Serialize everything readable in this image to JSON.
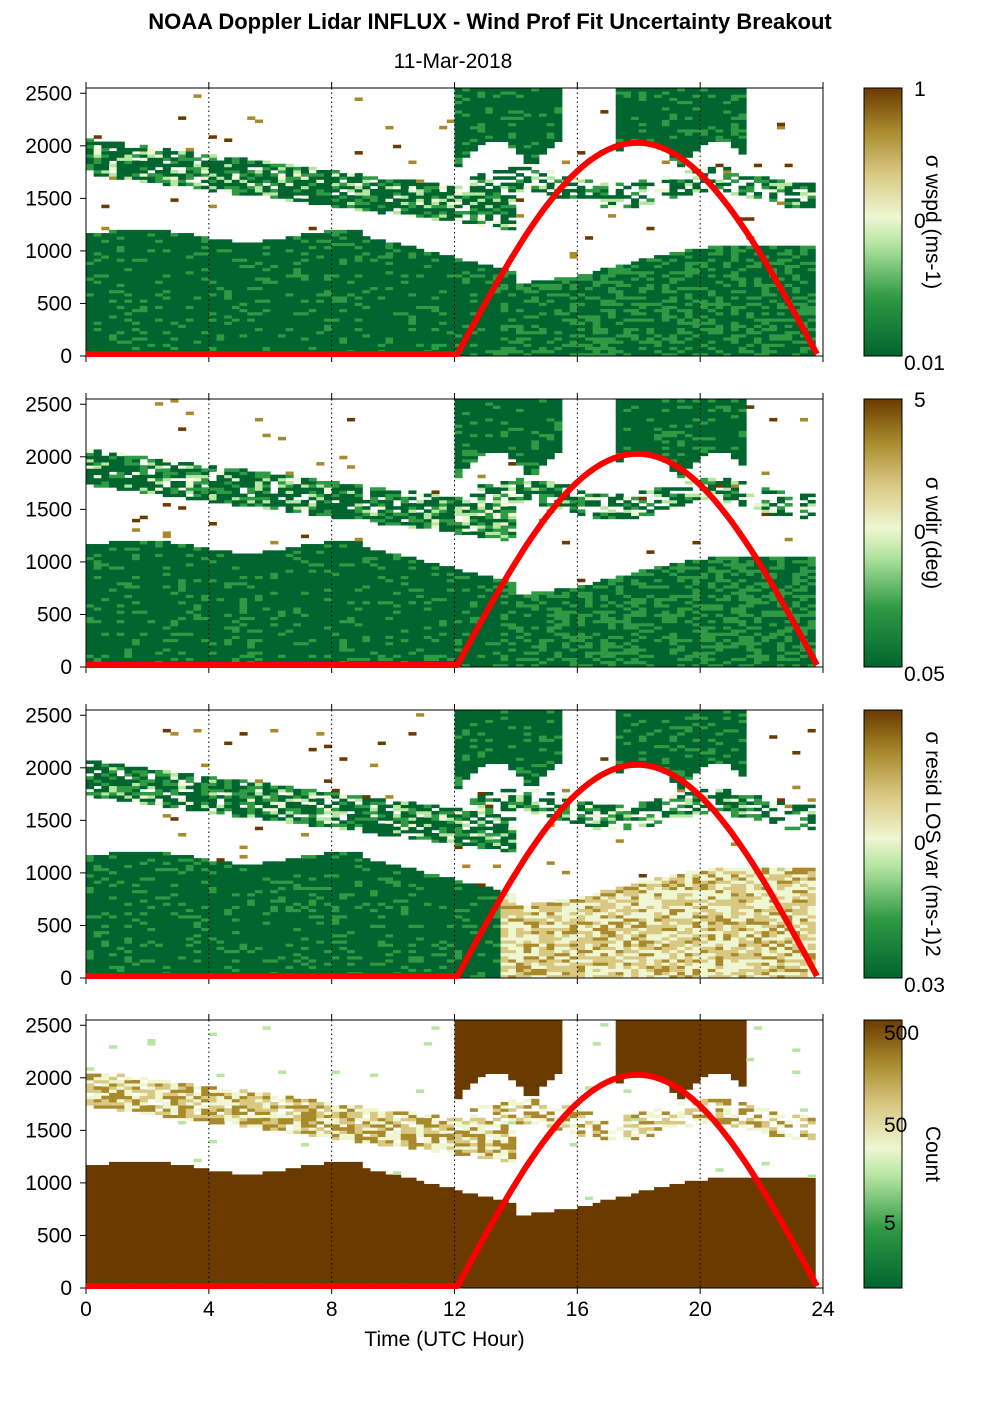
{
  "title": "NOAA Doppler Lidar INFLUX - Wind Prof Fit Uncertainty Breakout",
  "subtitle": "11-Mar-2018",
  "colors": {
    "dark_green": "#00652e",
    "mid_green": "#2e9a44",
    "light_green": "#b6e6a2",
    "pale": "#eef6d2",
    "tan": "#d9c882",
    "olive": "#a88a2c",
    "dark_brown": "#6b3a00",
    "solar_curve": "#ff0000",
    "background": "#ffffff"
  },
  "chart_data": [
    {
      "type": "heatmap",
      "name": "wspd",
      "xlabel": "",
      "ylabel": "",
      "xlim": [
        0,
        24
      ],
      "ylim": [
        0,
        2550
      ],
      "x_ticks": [
        0,
        4,
        8,
        12,
        16,
        20,
        24
      ],
      "y_ticks": [
        "0",
        "500",
        "1000",
        "1500",
        "2000",
        "2500"
      ],
      "colorbar": {
        "label": "σ wspd (ms-1)",
        "tick_labels": [
          "1",
          "0",
          "0.01"
        ],
        "scale": "log"
      },
      "solar_curve": {
        "rise_hour": 12.1,
        "peak_hour": 17.9,
        "set_hour": 23.8,
        "peak_height_m": 2010
      }
    },
    {
      "type": "heatmap",
      "name": "wdir",
      "xlabel": "",
      "ylabel": "",
      "xlim": [
        0,
        24
      ],
      "ylim": [
        0,
        2550
      ],
      "x_ticks": [
        0,
        4,
        8,
        12,
        16,
        20,
        24
      ],
      "y_ticks": [
        "0",
        "500",
        "1000",
        "1500",
        "2000",
        "2500"
      ],
      "colorbar": {
        "label": "σ wdir (deg)",
        "tick_labels": [
          "5",
          "0",
          "0.05"
        ],
        "scale": "log"
      },
      "solar_curve": {
        "rise_hour": 12.1,
        "peak_hour": 17.9,
        "set_hour": 23.8,
        "peak_height_m": 2010
      }
    },
    {
      "type": "heatmap",
      "name": "resid",
      "xlabel": "",
      "ylabel": "",
      "xlim": [
        0,
        24
      ],
      "ylim": [
        0,
        2550
      ],
      "x_ticks": [
        0,
        4,
        8,
        12,
        16,
        20,
        24
      ],
      "y_ticks": [
        "0",
        "500",
        "1000",
        "1500",
        "2000",
        "2500"
      ],
      "colorbar": {
        "label": "σ resid LOS var (ms-1)2",
        "tick_labels": [
          "",
          "0",
          "0.03"
        ],
        "scale": "log"
      },
      "solar_curve": {
        "rise_hour": 12.1,
        "peak_hour": 17.9,
        "set_hour": 23.8,
        "peak_height_m": 2010
      }
    },
    {
      "type": "heatmap",
      "name": "count",
      "xlabel": "Time (UTC Hour)",
      "ylabel": "",
      "xlim": [
        0,
        24
      ],
      "ylim": [
        0,
        2550
      ],
      "x_ticks": [
        0,
        4,
        8,
        12,
        16,
        20,
        24
      ],
      "y_ticks": [
        "0",
        "500",
        "1000",
        "1500",
        "2000",
        "2500"
      ],
      "colorbar": {
        "label": "Count",
        "tick_labels": [
          "500",
          "50",
          "5"
        ],
        "scale": "log"
      },
      "solar_curve": {
        "rise_hour": 12.1,
        "peak_hour": 17.9,
        "set_hour": 23.8,
        "peak_height_m": 2010
      }
    }
  ]
}
